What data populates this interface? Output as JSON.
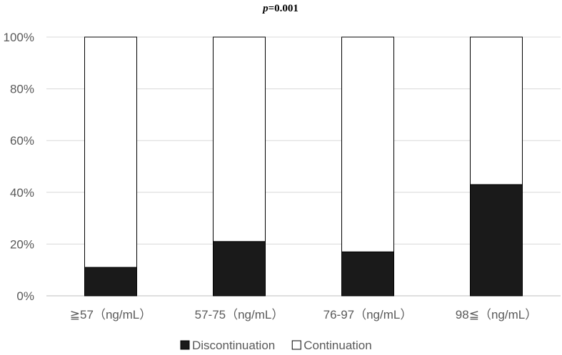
{
  "chart_data": {
    "type": "bar",
    "stacked": true,
    "percent": true,
    "title_italic": "p",
    "title_rest": "=0.001",
    "categories": [
      "≧57（ng/mL）",
      "57-75（ng/mL）",
      "76-97（ng/mL）",
      "98≦（ng/mL）"
    ],
    "ylim": [
      0,
      100
    ],
    "yticks": [
      "0%",
      "20%",
      "40%",
      "60%",
      "80%",
      "100%"
    ],
    "grid": true,
    "legend_position": "bottom",
    "series": [
      {
        "name": "Discontinuation",
        "values": [
          11,
          21,
          17,
          43
        ],
        "color": "#1a1a1a"
      },
      {
        "name": "Continuation",
        "values": [
          89,
          79,
          83,
          57
        ],
        "color": "#ffffff"
      }
    ]
  }
}
